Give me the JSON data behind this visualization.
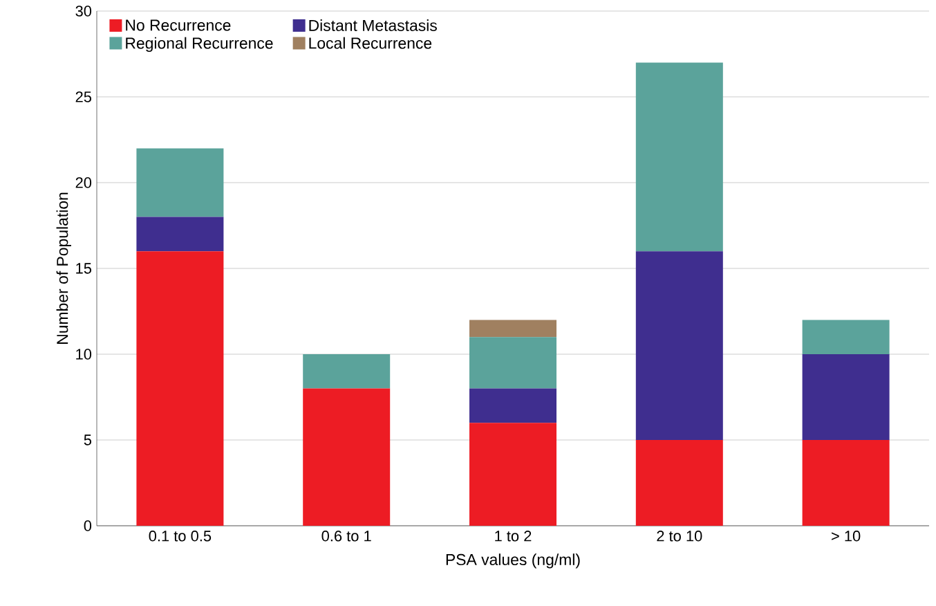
{
  "chart_data": {
    "type": "bar",
    "stacked": true,
    "xlabel": "PSA values (ng/ml)",
    "ylabel": "Number of Population",
    "categories": [
      "0.1 to 0.5",
      "0.6 to 1",
      "1 to 2",
      "2 to 10",
      "> 10"
    ],
    "series": [
      {
        "name": "No Recurrence",
        "color": "#ed1c24",
        "values": [
          16,
          8,
          6,
          5,
          5
        ]
      },
      {
        "name": "Distant Metastasis",
        "color": "#3f2e8f",
        "values": [
          2,
          0,
          2,
          11,
          5
        ]
      },
      {
        "name": "Regional Recurrence",
        "color": "#5ba39b",
        "values": [
          4,
          2,
          3,
          11,
          2
        ]
      },
      {
        "name": "Local Recurrence",
        "color": "#a08060",
        "values": [
          0,
          0,
          1,
          0,
          0
        ]
      }
    ],
    "ylim": [
      0,
      30
    ],
    "yticks": [
      0,
      5,
      10,
      15,
      20,
      25,
      30
    ],
    "grid": "y",
    "legend": "top left"
  }
}
